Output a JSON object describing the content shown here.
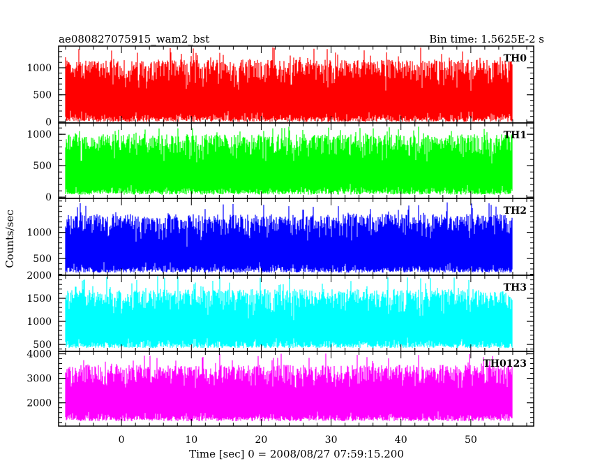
{
  "header": {
    "left_title": "ae080827075915_wam2_bst",
    "right_title": "Bin time: 1.5625E-2 s"
  },
  "chart_data": {
    "type": "line",
    "title": "ae080827075915_wam2_bst",
    "subtitle": "Bin time: 1.5625E-2 s",
    "xlabel": "Time [sec] 0 = 2008/08/27 07:59:15.200",
    "ylabel": "Counts/sec",
    "xlim": [
      -9,
      59
    ],
    "x_ticks": [
      0,
      10,
      20,
      30,
      40,
      50
    ],
    "x_data_range": [
      -8,
      56
    ],
    "bin_time_s": 0.015625,
    "grid": false,
    "panels": [
      {
        "name": "TH0",
        "color": "#ff0000",
        "ylim": [
          -20,
          1400
        ],
        "y_ticks": [
          0,
          500,
          1000
        ],
        "typical_min": 0,
        "typical_mean": 450,
        "typical_max": 1150,
        "peak_max": 1380
      },
      {
        "name": "TH1",
        "color": "#00ff00",
        "ylim": [
          -20,
          1180
        ],
        "y_ticks": [
          0,
          500,
          1000
        ],
        "typical_min": 40,
        "typical_mean": 450,
        "typical_max": 1000,
        "peak_max": 1120
      },
      {
        "name": "TH2",
        "color": "#0000ff",
        "ylim": [
          180,
          1650
        ],
        "y_ticks": [
          500,
          1000
        ],
        "typical_min": 230,
        "typical_mean": 700,
        "typical_max": 1350,
        "peak_max": 1580
      },
      {
        "name": "TH3",
        "color": "#00ffff",
        "ylim": [
          350,
          2000
        ],
        "y_ticks": [
          500,
          1000,
          1500,
          2000
        ],
        "typical_min": 420,
        "typical_mean": 1000,
        "typical_max": 1700,
        "peak_max": 1980
      },
      {
        "name": "TH0123",
        "color": "#ff00ff",
        "ylim": [
          1050,
          4100
        ],
        "y_ticks": [
          2000,
          3000,
          4000
        ],
        "typical_min": 1250,
        "typical_mean": 2600,
        "typical_max": 3550,
        "peak_max": 4020
      }
    ]
  }
}
